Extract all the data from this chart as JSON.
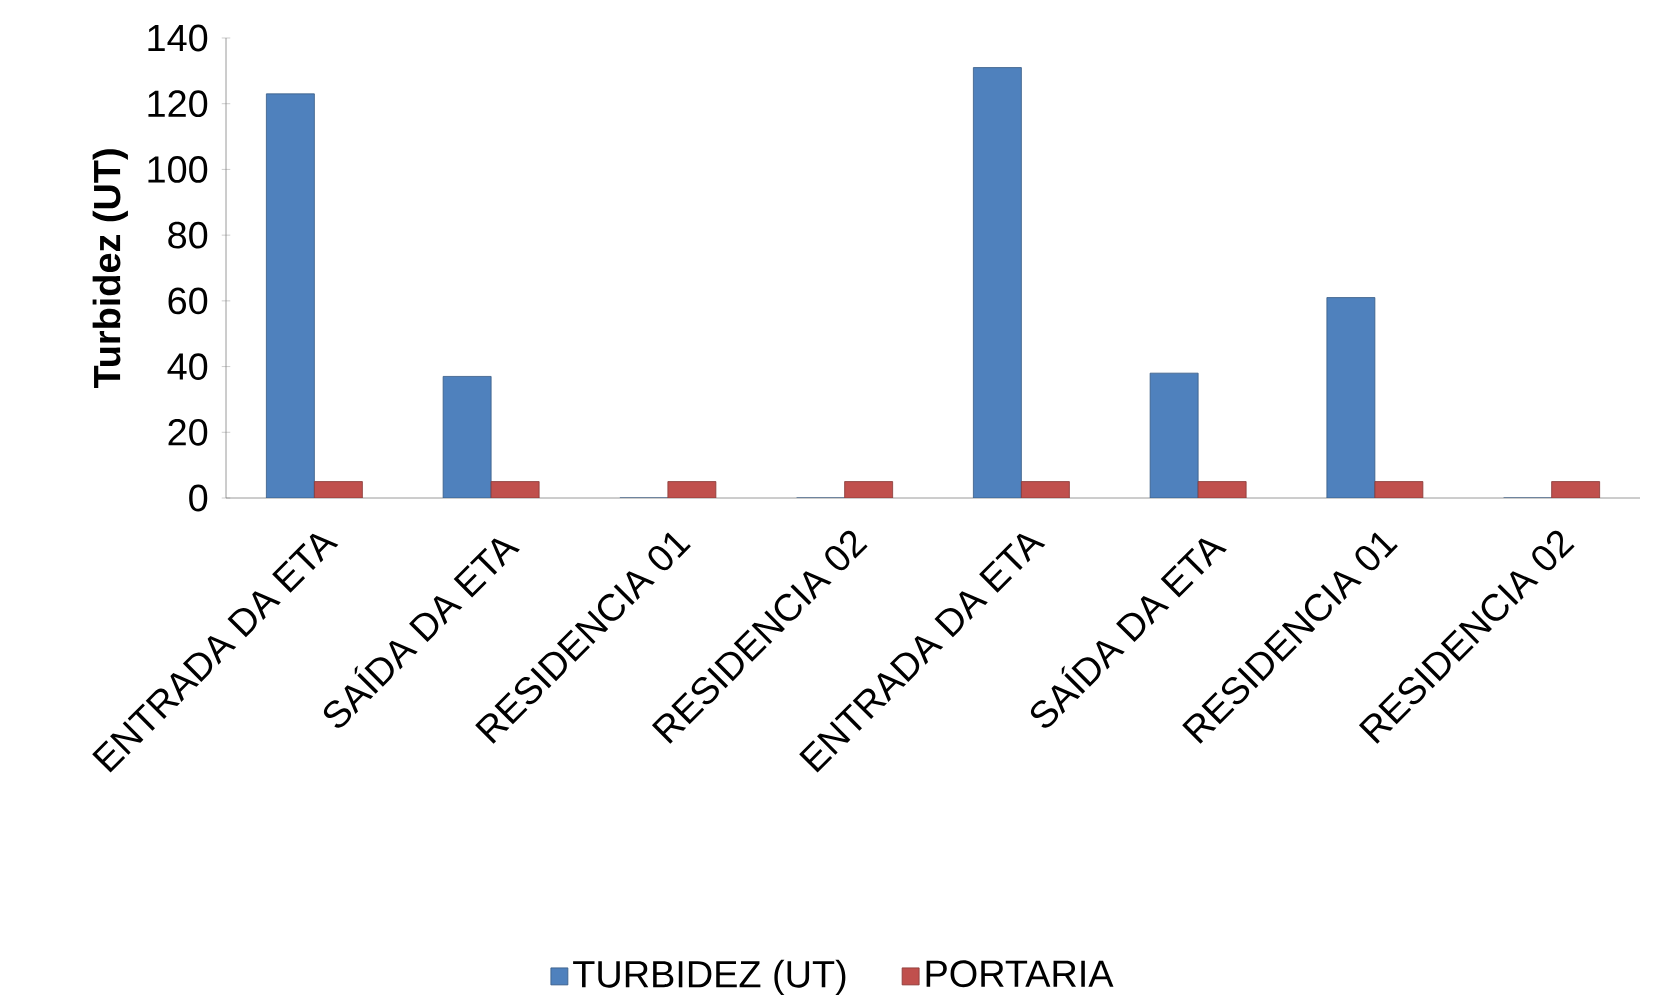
{
  "chart_data": {
    "type": "bar",
    "ylabel": "Turbidez (UT)",
    "categories": [
      "ENTRADA DA ETA",
      "SAÍDA DA ETA",
      "RESIDENCIA 01",
      "RESIDENCIA 02",
      "ENTRADA DA ETA",
      "SAÍDA DA ETA",
      "RESIDENCIA 01",
      "RESIDENCIA 02"
    ],
    "series": [
      {
        "name": "TURBIDEZ (UT)",
        "color": "#4f81bd",
        "values": [
          123,
          37,
          0,
          0,
          131,
          38,
          61,
          0
        ]
      },
      {
        "name": "PORTARIA",
        "color": "#c0504d",
        "values": [
          5,
          5,
          5,
          5,
          5,
          5,
          5,
          5
        ]
      }
    ],
    "ylim": [
      0,
      140
    ],
    "yticks": [
      0,
      20,
      40,
      60,
      80,
      100,
      120,
      140
    ],
    "legend": "bottom"
  }
}
